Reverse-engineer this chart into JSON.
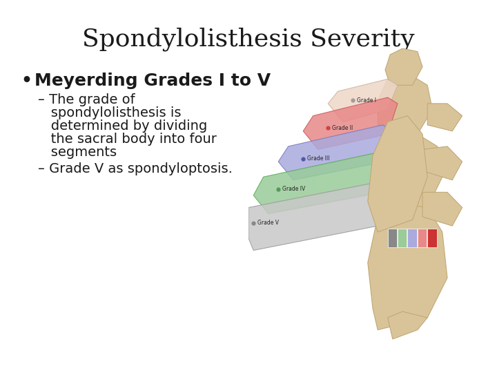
{
  "title": "Spondylolisthesis Severity",
  "title_fontsize": 26,
  "background_color": "#ffffff",
  "bullet_main": "Meyerding Grades I to V",
  "bullet_main_fontsize": 18,
  "sub_bullet1_lines": [
    "– The grade of",
    "   spondylolisthesis is",
    "   determined by dividing",
    "   the sacral body into four",
    "   segments"
  ],
  "sub_bullet2": "– Grade V as spondyloptosis.",
  "sub_bullet_fontsize": 14,
  "text_color": "#1a1a1a",
  "bone_color": "#D9C49A",
  "bone_edge": "#C0A875",
  "grade_colors": [
    "#E8B4B4",
    "#E87878",
    "#9999CC",
    "#88BB88",
    "#C8C8C8"
  ],
  "grade_edge_colors": [
    "#CC8888",
    "#CC4444",
    "#6666AA",
    "#559955",
    "#999999"
  ],
  "grade_labels": [
    "Grade I",
    "Grade II",
    "Grade III",
    "Grade IV",
    "Grade V"
  ],
  "grade_dot_colors": [
    "#AA9999",
    "#CC4444",
    "#5555AA",
    "#559955",
    "#888888"
  ]
}
